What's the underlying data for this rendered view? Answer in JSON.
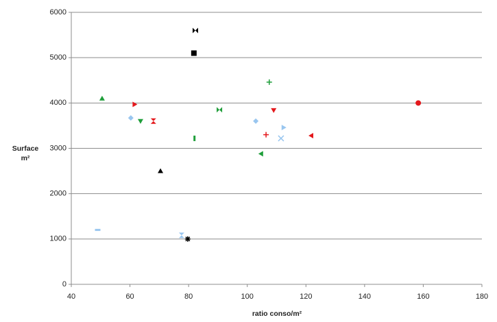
{
  "chart_data": {
    "type": "scatter",
    "xlabel": "ratio conso/m²",
    "ylabel": [
      "Surface",
      "m²"
    ],
    "x": [
      50.5,
      61.6,
      60.3,
      63.6,
      68,
      70.4,
      49,
      77.6,
      79.7,
      82.3,
      81.8,
      82,
      90.5,
      102.9,
      104.7,
      106.4,
      107.5,
      109,
      111.5,
      112.4,
      121.8,
      158.3
    ],
    "values": [
      4100,
      3970,
      3670,
      3600,
      3600,
      2500,
      1200,
      1080,
      1000,
      5600,
      5100,
      3220,
      3850,
      3600,
      2880,
      3300,
      4460,
      3840,
      3220,
      3460,
      3280,
      4000
    ],
    "colors": [
      "#1f9e3a",
      "#e4181c",
      "#99c6ef",
      "#1f9e3a",
      "#e4181c",
      "#000000",
      "#99c6ef",
      "#99c6ef",
      "#000000",
      "#000000",
      "#000000",
      "#1f9e3a",
      "#1f9e3a",
      "#99c6ef",
      "#1f9e3a",
      "#e4181c",
      "#1f9e3a",
      "#e4181c",
      "#99c6ef",
      "#99c6ef",
      "#e4181c",
      "#e4181c"
    ],
    "markers": [
      "triangle-up",
      "triangle-right",
      "diamond",
      "triangle-down",
      "hourglass",
      "triangle-up",
      "dash",
      "hourglass",
      "asterisk",
      "bowtie",
      "square",
      "vdash",
      "bowtie",
      "diamond",
      "triangle-left",
      "plus",
      "plus",
      "triangle-down",
      "x",
      "triangle-right",
      "triangle-left",
      "circle"
    ],
    "xlim": [
      40,
      180
    ],
    "xticks": [
      40,
      60,
      80,
      100,
      120,
      140,
      160,
      180
    ],
    "ylim": [
      0,
      6000
    ],
    "yticks": [
      0,
      1000,
      2000,
      3000,
      4000,
      5000,
      6000
    ],
    "grid": true
  }
}
